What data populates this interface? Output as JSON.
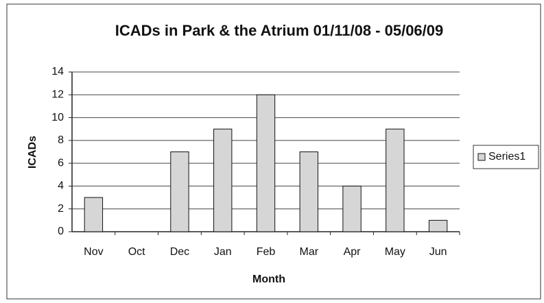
{
  "chart_data": {
    "type": "bar",
    "title": "ICADs in Park & the Atrium 01/11/08 - 05/06/09",
    "x_label": "Month",
    "y_label": "ICADs",
    "categories": [
      "Nov",
      "Oct",
      "Dec",
      "Jan",
      "Feb",
      "Mar",
      "Apr",
      "May",
      "Jun"
    ],
    "series": [
      {
        "name": "Series1",
        "color": "#d6d6d6",
        "values": [
          3,
          0,
          7,
          9,
          12,
          7,
          4,
          9,
          1
        ]
      }
    ],
    "ylim": [
      0,
      14
    ],
    "yticks": [
      0,
      2,
      4,
      6,
      8,
      10,
      12,
      14
    ],
    "grid": true,
    "legend": "right"
  }
}
